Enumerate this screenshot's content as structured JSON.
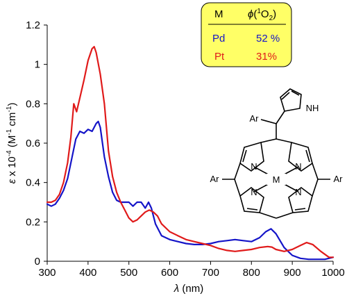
{
  "chart_data": {
    "type": "line",
    "title": "",
    "xlabel_italic": "λ",
    "xlabel_rest": " (nm)",
    "ylabel_italic": "ε",
    "ylabel_rest": " x 10",
    "ylabel_exp": "-4",
    "ylabel_unit": " (M",
    "ylabel_unit_exp": "-1",
    "ylabel_unit2": " cm",
    "ylabel_unit2_exp": "-1",
    "ylabel_close": ")",
    "xlim": [
      300,
      1000
    ],
    "ylim": [
      0,
      1.2
    ],
    "xticks": [
      300,
      400,
      500,
      600,
      700,
      800,
      900,
      1000
    ],
    "yticks": [
      0,
      0.2,
      0.4,
      0.6,
      0.8,
      1,
      1.2
    ],
    "ytick_labels": [
      "0",
      "0.2",
      "0.4",
      "0.6",
      "0.8",
      "1",
      "1.2"
    ],
    "grid": false,
    "series": [
      {
        "name": "Pd",
        "color": "#1414c8",
        "x": [
          300,
          310,
          320,
          330,
          340,
          350,
          360,
          370,
          380,
          390,
          400,
          410,
          420,
          425,
          430,
          440,
          450,
          460,
          470,
          480,
          490,
          500,
          510,
          520,
          530,
          540,
          548,
          555,
          565,
          580,
          600,
          620,
          640,
          660,
          680,
          700,
          720,
          740,
          760,
          780,
          800,
          820,
          835,
          848,
          860,
          880,
          900,
          920,
          940,
          960,
          980,
          1000
        ],
        "y": [
          0.29,
          0.28,
          0.29,
          0.32,
          0.36,
          0.42,
          0.52,
          0.62,
          0.66,
          0.65,
          0.67,
          0.66,
          0.7,
          0.71,
          0.68,
          0.53,
          0.43,
          0.35,
          0.31,
          0.3,
          0.3,
          0.3,
          0.28,
          0.3,
          0.3,
          0.27,
          0.3,
          0.27,
          0.19,
          0.13,
          0.11,
          0.1,
          0.09,
          0.085,
          0.085,
          0.09,
          0.1,
          0.105,
          0.11,
          0.105,
          0.1,
          0.12,
          0.15,
          0.165,
          0.14,
          0.07,
          0.03,
          0.015,
          0.01,
          0.01,
          0.01,
          0.02
        ]
      },
      {
        "name": "Pt",
        "color": "#e01a1a",
        "x": [
          300,
          310,
          320,
          330,
          340,
          350,
          358,
          365,
          372,
          380,
          390,
          400,
          410,
          415,
          420,
          430,
          440,
          450,
          460,
          470,
          480,
          490,
          500,
          510,
          520,
          530,
          540,
          550,
          560,
          570,
          580,
          600,
          620,
          640,
          660,
          680,
          700,
          720,
          740,
          760,
          780,
          800,
          820,
          840,
          850,
          860,
          880,
          900,
          920,
          935,
          950,
          970,
          990,
          1000
        ],
        "y": [
          0.3,
          0.3,
          0.31,
          0.34,
          0.4,
          0.5,
          0.63,
          0.8,
          0.76,
          0.83,
          0.92,
          1.02,
          1.08,
          1.09,
          1.06,
          0.95,
          0.8,
          0.56,
          0.43,
          0.35,
          0.3,
          0.26,
          0.22,
          0.2,
          0.21,
          0.23,
          0.25,
          0.26,
          0.25,
          0.23,
          0.19,
          0.15,
          0.13,
          0.11,
          0.1,
          0.09,
          0.08,
          0.065,
          0.055,
          0.05,
          0.055,
          0.06,
          0.07,
          0.075,
          0.072,
          0.06,
          0.05,
          0.06,
          0.08,
          0.095,
          0.085,
          0.05,
          0.02,
          0.02
        ]
      }
    ],
    "legend": {
      "placement": "top-right",
      "background": "#ffff66",
      "header_col1": "M",
      "header_col2_phi": "ϕ",
      "header_col2_open": "(",
      "header_col2_sup": "1",
      "header_col2_mol": "O",
      "header_col2_sub": "2",
      "header_col2_close": ")",
      "rows": [
        {
          "metal": "Pd",
          "value": "52 %",
          "color": "#1414c8"
        },
        {
          "metal": "Pt",
          "value": "31%",
          "color": "#e01a1a"
        }
      ]
    },
    "molecule": {
      "label_ar_top": "Ar",
      "label_nh": "NH",
      "label_ar_left": "Ar",
      "label_ar_right": "Ar",
      "label_metal": "M",
      "label_n": "N"
    }
  }
}
